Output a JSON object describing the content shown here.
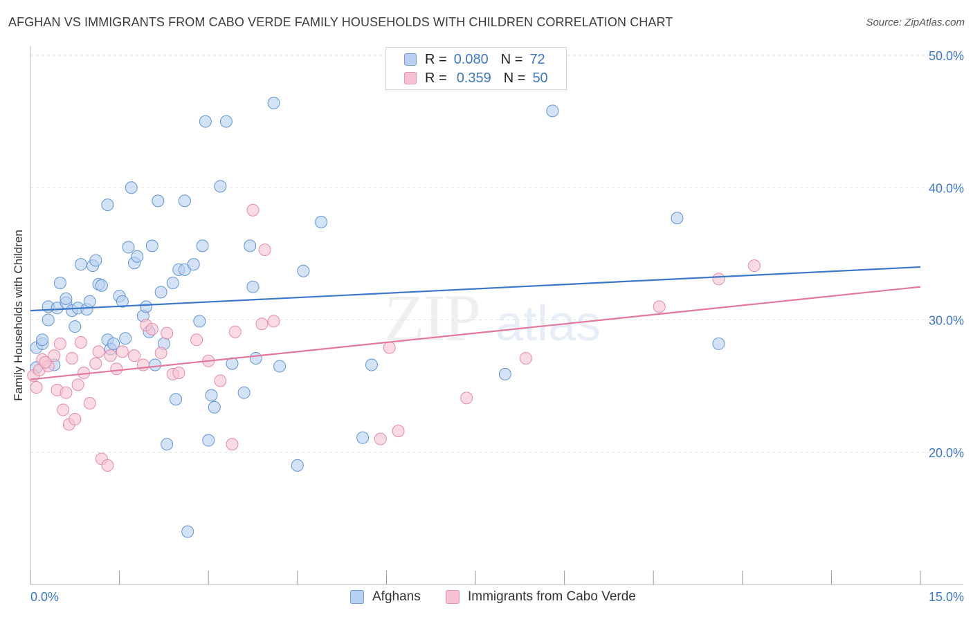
{
  "title": "AFGHAN VS IMMIGRANTS FROM CABO VERDE FAMILY HOUSEHOLDS WITH CHILDREN CORRELATION CHART",
  "source": "Source: ZipAtlas.com",
  "watermark": {
    "zip": "ZIP",
    "atlas": "atlas"
  },
  "legend_top": {
    "r_label": "R =",
    "n_label": "N =",
    "rows": [
      {
        "r": "0.080",
        "n": "72"
      },
      {
        "r": "0.359",
        "n": "50"
      }
    ]
  },
  "legend_bottom": [
    "Afghans",
    "Immigrants from Cabo Verde"
  ],
  "colors": {
    "blue": "#3b78c9",
    "pink": "#e4779c",
    "blue_fill": "#b8cff0",
    "pink_fill": "#f7c3d2",
    "grid": "#e2e2e2",
    "axis": "#999999"
  },
  "chart_data": {
    "type": "scatter",
    "title": "AFGHAN VS IMMIGRANTS FROM CABO VERDE FAMILY HOUSEHOLDS WITH CHILDREN CORRELATION CHART",
    "xlabel": "",
    "ylabel": "Family Households with Children",
    "xlim": [
      0,
      15
    ],
    "ylim": [
      10,
      50
    ],
    "x_tick_labels": [
      "0.0%",
      "15.0%"
    ],
    "y_ticks": [
      20,
      30,
      40,
      50
    ],
    "y_tick_labels": [
      "20.0%",
      "30.0%",
      "40.0%",
      "50.0%"
    ],
    "grid": true,
    "legend": "top-center",
    "series": [
      {
        "name": "Afghans",
        "color": "#3b78c9",
        "r": 0.08,
        "n": 72,
        "trend": {
          "x": [
            0,
            15
          ],
          "y": [
            30.7,
            34.0
          ]
        },
        "points": [
          [
            0.1,
            26.4
          ],
          [
            0.1,
            27.9
          ],
          [
            0.2,
            28.2
          ],
          [
            0.2,
            28.5
          ],
          [
            0.3,
            31.0
          ],
          [
            0.3,
            30.0
          ],
          [
            0.4,
            26.6
          ],
          [
            0.45,
            30.9
          ],
          [
            0.5,
            32.8
          ],
          [
            0.6,
            31.3
          ],
          [
            0.6,
            31.6
          ],
          [
            0.7,
            30.7
          ],
          [
            0.75,
            29.5
          ],
          [
            0.8,
            30.9
          ],
          [
            0.85,
            34.2
          ],
          [
            0.95,
            30.8
          ],
          [
            1.0,
            31.4
          ],
          [
            1.05,
            34.1
          ],
          [
            1.1,
            34.5
          ],
          [
            1.15,
            32.7
          ],
          [
            1.2,
            32.6
          ],
          [
            1.3,
            28.5
          ],
          [
            1.3,
            38.7
          ],
          [
            1.35,
            27.8
          ],
          [
            1.4,
            28.2
          ],
          [
            1.5,
            31.8
          ],
          [
            1.55,
            31.4
          ],
          [
            1.6,
            28.6
          ],
          [
            1.65,
            35.5
          ],
          [
            1.7,
            40.0
          ],
          [
            1.75,
            34.3
          ],
          [
            1.8,
            34.8
          ],
          [
            1.9,
            30.3
          ],
          [
            1.95,
            31.0
          ],
          [
            2.0,
            29.1
          ],
          [
            2.05,
            35.6
          ],
          [
            2.1,
            26.6
          ],
          [
            2.15,
            39.0
          ],
          [
            2.2,
            32.1
          ],
          [
            2.25,
            28.2
          ],
          [
            2.3,
            20.6
          ],
          [
            2.4,
            32.8
          ],
          [
            2.45,
            24.0
          ],
          [
            2.5,
            33.8
          ],
          [
            2.6,
            33.8
          ],
          [
            2.6,
            39.0
          ],
          [
            2.65,
            14.0
          ],
          [
            2.75,
            34.2
          ],
          [
            2.85,
            29.9
          ],
          [
            2.9,
            35.6
          ],
          [
            2.95,
            45.0
          ],
          [
            3.0,
            20.9
          ],
          [
            3.05,
            24.3
          ],
          [
            3.1,
            23.4
          ],
          [
            3.2,
            40.1
          ],
          [
            3.3,
            45.0
          ],
          [
            3.4,
            26.7
          ],
          [
            3.6,
            24.5
          ],
          [
            3.7,
            35.6
          ],
          [
            3.75,
            32.5
          ],
          [
            3.8,
            27.1
          ],
          [
            4.1,
            46.4
          ],
          [
            4.2,
            26.5
          ],
          [
            4.5,
            19.0
          ],
          [
            4.6,
            33.7
          ],
          [
            4.9,
            37.4
          ],
          [
            5.6,
            21.1
          ],
          [
            5.75,
            26.6
          ],
          [
            8.0,
            25.9
          ],
          [
            8.8,
            45.8
          ],
          [
            10.9,
            37.7
          ],
          [
            11.6,
            28.2
          ]
        ]
      },
      {
        "name": "Immigrants from Cabo Verde",
        "color": "#e4779c",
        "r": 0.359,
        "n": 50,
        "trend": {
          "x": [
            0,
            15
          ],
          "y": [
            25.5,
            32.5
          ]
        },
        "points": [
          [
            0.05,
            25.8
          ],
          [
            0.1,
            24.9
          ],
          [
            0.15,
            26.2
          ],
          [
            0.2,
            27.0
          ],
          [
            0.3,
            26.5
          ],
          [
            0.4,
            27.3
          ],
          [
            0.45,
            24.7
          ],
          [
            0.5,
            28.2
          ],
          [
            0.55,
            23.2
          ],
          [
            0.6,
            24.5
          ],
          [
            0.65,
            22.1
          ],
          [
            0.7,
            27.1
          ],
          [
            0.75,
            22.5
          ],
          [
            0.8,
            25.1
          ],
          [
            0.85,
            28.3
          ],
          [
            0.9,
            26.0
          ],
          [
            1.0,
            23.7
          ],
          [
            1.1,
            26.7
          ],
          [
            1.15,
            27.6
          ],
          [
            1.2,
            19.5
          ],
          [
            1.3,
            19.0
          ],
          [
            1.35,
            27.3
          ],
          [
            1.45,
            26.3
          ],
          [
            1.55,
            27.6
          ],
          [
            1.75,
            27.3
          ],
          [
            1.9,
            26.6
          ],
          [
            1.95,
            29.6
          ],
          [
            2.05,
            29.3
          ],
          [
            2.2,
            27.5
          ],
          [
            2.3,
            29.0
          ],
          [
            2.4,
            25.9
          ],
          [
            2.5,
            26.0
          ],
          [
            2.8,
            28.5
          ],
          [
            3.0,
            26.9
          ],
          [
            3.2,
            25.4
          ],
          [
            3.4,
            20.6
          ],
          [
            3.45,
            29.1
          ],
          [
            3.75,
            38.3
          ],
          [
            3.9,
            29.7
          ],
          [
            3.95,
            35.3
          ],
          [
            4.1,
            29.9
          ],
          [
            5.9,
            21.0
          ],
          [
            6.05,
            27.9
          ],
          [
            6.2,
            21.6
          ],
          [
            7.35,
            24.1
          ],
          [
            8.35,
            27.1
          ],
          [
            10.6,
            31.0
          ],
          [
            11.6,
            33.1
          ],
          [
            12.2,
            34.1
          ],
          [
            0.25,
            26.8
          ]
        ]
      }
    ]
  }
}
